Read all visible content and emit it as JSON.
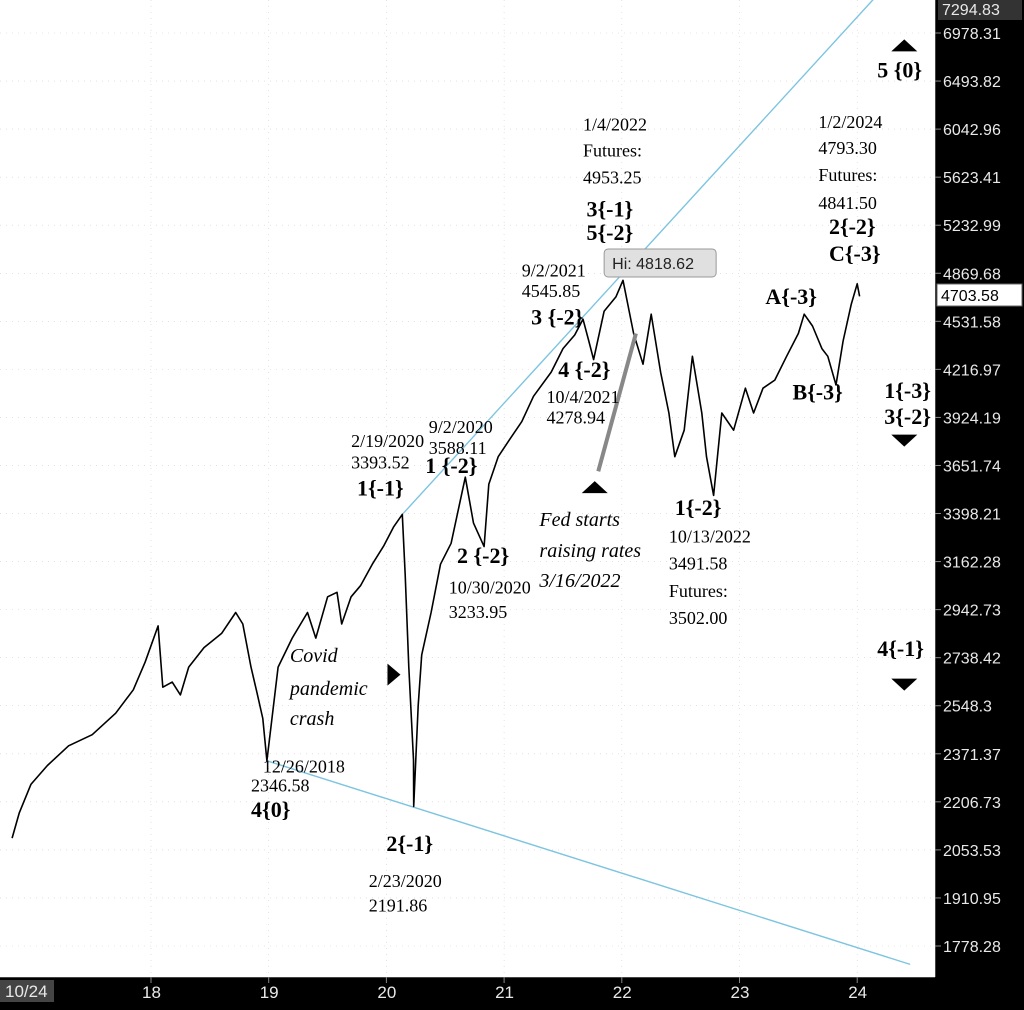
{
  "chart_data": {
    "type": "line",
    "scale": "log",
    "ylim": [
      1700,
      7400
    ],
    "y_ticks": [
      6978.31,
      6493.82,
      6042.96,
      5623.41,
      5232.99,
      4869.68,
      4531.58,
      4216.97,
      3924.19,
      3651.74,
      3398.21,
      3162.28,
      2942.73,
      2738.42,
      2548.3,
      2371.37,
      2206.73,
      2053.53,
      1910.95,
      1778.28
    ],
    "y_top_label": "7294.83",
    "x_ticks": [
      {
        "x": 2018,
        "label": "18"
      },
      {
        "x": 2019,
        "label": "19"
      },
      {
        "x": 2020,
        "label": "20"
      },
      {
        "x": 2021,
        "label": "21"
      },
      {
        "x": 2022,
        "label": "22"
      },
      {
        "x": 2023,
        "label": "23"
      },
      {
        "x": 2024,
        "label": "24"
      }
    ],
    "x_first_label": "10/24",
    "last_price": "4703.58",
    "high_label": "Hi: 4818.62",
    "series": [
      {
        "points": [
          [
            2016.82,
            2090
          ],
          [
            2016.88,
            2170
          ],
          [
            2016.98,
            2265
          ],
          [
            2017.12,
            2330
          ],
          [
            2017.3,
            2400
          ],
          [
            2017.5,
            2440
          ],
          [
            2017.7,
            2520
          ],
          [
            2017.85,
            2610
          ],
          [
            2017.95,
            2720
          ],
          [
            2018.06,
            2872
          ],
          [
            2018.1,
            2620
          ],
          [
            2018.18,
            2640
          ],
          [
            2018.25,
            2590
          ],
          [
            2018.32,
            2700
          ],
          [
            2018.45,
            2780
          ],
          [
            2018.6,
            2840
          ],
          [
            2018.72,
            2930
          ],
          [
            2018.78,
            2880
          ],
          [
            2018.85,
            2700
          ],
          [
            2018.9,
            2600
          ],
          [
            2018.95,
            2500
          ],
          [
            2018.985,
            2346.58
          ],
          [
            2019.08,
            2700
          ],
          [
            2019.2,
            2820
          ],
          [
            2019.33,
            2930
          ],
          [
            2019.4,
            2820
          ],
          [
            2019.5,
            3000
          ],
          [
            2019.58,
            3020
          ],
          [
            2019.62,
            2880
          ],
          [
            2019.7,
            3000
          ],
          [
            2019.78,
            3050
          ],
          [
            2019.88,
            3150
          ],
          [
            2019.98,
            3240
          ],
          [
            2020.06,
            3330
          ],
          [
            2020.135,
            3393.52
          ],
          [
            2020.16,
            3100
          ],
          [
            2020.19,
            2700
          ],
          [
            2020.23,
            2350
          ],
          [
            2020.232,
            2191.86
          ],
          [
            2020.27,
            2550
          ],
          [
            2020.3,
            2750
          ],
          [
            2020.38,
            2930
          ],
          [
            2020.46,
            3150
          ],
          [
            2020.55,
            3250
          ],
          [
            2020.67,
            3588.11
          ],
          [
            2020.74,
            3350
          ],
          [
            2020.83,
            3233.95
          ],
          [
            2020.87,
            3550
          ],
          [
            2020.95,
            3700
          ],
          [
            2021.05,
            3800
          ],
          [
            2021.15,
            3900
          ],
          [
            2021.25,
            4050
          ],
          [
            2021.4,
            4200
          ],
          [
            2021.5,
            4350
          ],
          [
            2021.6,
            4440
          ],
          [
            2021.67,
            4545.85
          ],
          [
            2021.72,
            4400
          ],
          [
            2021.76,
            4278.94
          ],
          [
            2021.85,
            4600
          ],
          [
            2021.95,
            4700
          ],
          [
            2022.01,
            4818.62
          ],
          [
            2022.1,
            4450
          ],
          [
            2022.18,
            4250
          ],
          [
            2022.25,
            4580
          ],
          [
            2022.33,
            4200
          ],
          [
            2022.4,
            3950
          ],
          [
            2022.45,
            3700
          ],
          [
            2022.53,
            3850
          ],
          [
            2022.6,
            4300
          ],
          [
            2022.68,
            3950
          ],
          [
            2022.72,
            3700
          ],
          [
            2022.78,
            3491.58
          ],
          [
            2022.85,
            3950
          ],
          [
            2022.95,
            3850
          ],
          [
            2023.05,
            4100
          ],
          [
            2023.12,
            3950
          ],
          [
            2023.2,
            4100
          ],
          [
            2023.3,
            4150
          ],
          [
            2023.4,
            4300
          ],
          [
            2023.5,
            4450
          ],
          [
            2023.55,
            4580
          ],
          [
            2023.62,
            4500
          ],
          [
            2023.7,
            4350
          ],
          [
            2023.75,
            4300
          ],
          [
            2023.82,
            4120
          ],
          [
            2023.88,
            4400
          ],
          [
            2023.95,
            4650
          ],
          [
            2024.0,
            4793.3
          ],
          [
            2024.02,
            4703.58
          ]
        ]
      }
    ],
    "trendlines": [
      {
        "from": [
          2020.135,
          3393.52
        ],
        "to": [
          2024.25,
          7500
        ]
      },
      {
        "from": [
          2018.985,
          2346.58
        ],
        "to": [
          2024.45,
          1730
        ]
      }
    ],
    "annotations": [
      {
        "text": "12/26/2018",
        "x": 2018.95,
        "y": 2305
      },
      {
        "text": "2346.58",
        "x": 2018.85,
        "y": 2242
      },
      {
        "text": "4{0}",
        "x": 2018.85,
        "y": 2158,
        "bold": true
      },
      {
        "text": "2/19/2020",
        "x": 2019.7,
        "y": 3755
      },
      {
        "text": "3393.52",
        "x": 2019.7,
        "y": 3635
      },
      {
        "text": "1{-1}",
        "x": 2019.75,
        "y": 3490,
        "bold": true
      },
      {
        "text": "2{-1}",
        "x": 2020.0,
        "y": 2050,
        "bold": true
      },
      {
        "text": "2/23/2020",
        "x": 2019.85,
        "y": 1942
      },
      {
        "text": "2191.86",
        "x": 2019.85,
        "y": 1872
      },
      {
        "text": "Covid",
        "x": 2019.18,
        "y": 2720,
        "italic": true
      },
      {
        "text": "pandemic",
        "x": 2019.18,
        "y": 2590,
        "italic": true
      },
      {
        "text": "crash",
        "x": 2019.18,
        "y": 2475,
        "italic": true
      },
      {
        "text": "9/2/2020",
        "x": 2020.36,
        "y": 3835
      },
      {
        "text": "3588.11",
        "x": 2020.36,
        "y": 3715
      },
      {
        "text": "1 {-2}",
        "x": 2020.33,
        "y": 3610,
        "bold": true
      },
      {
        "text": "2 {-2}",
        "x": 2020.6,
        "y": 3155,
        "bold": true
      },
      {
        "text": "10/30/2020",
        "x": 2020.53,
        "y": 3015
      },
      {
        "text": "3233.95",
        "x": 2020.53,
        "y": 2907
      },
      {
        "text": "9/2/2021",
        "x": 2021.15,
        "y": 4845
      },
      {
        "text": "4545.85",
        "x": 2021.15,
        "y": 4700
      },
      {
        "text": "3 {-2}",
        "x": 2021.23,
        "y": 4510,
        "bold": true
      },
      {
        "text": "4 {-2}",
        "x": 2021.46,
        "y": 4170,
        "bold": true
      },
      {
        "text": "10/4/2021",
        "x": 2021.36,
        "y": 4010
      },
      {
        "text": "4278.94",
        "x": 2021.36,
        "y": 3890
      },
      {
        "text": "1/4/2022",
        "x": 2021.67,
        "y": 6030
      },
      {
        "text": "Futures:",
        "x": 2021.67,
        "y": 5800
      },
      {
        "text": "4953.25",
        "x": 2021.67,
        "y": 5570
      },
      {
        "text": "3{-1}",
        "x": 2021.7,
        "y": 5300,
        "bold": true
      },
      {
        "text": "5{-2}",
        "x": 2021.7,
        "y": 5120,
        "bold": true
      },
      {
        "text": "Fed starts",
        "x": 2021.3,
        "y": 3335,
        "italic": true
      },
      {
        "text": "raising rates",
        "x": 2021.3,
        "y": 3185,
        "italic": true
      },
      {
        "text": "3/16/2022",
        "x": 2021.3,
        "y": 3045,
        "italic": true
      },
      {
        "text": "1{-2}",
        "x": 2022.45,
        "y": 3390,
        "bold": true
      },
      {
        "text": "10/13/2022",
        "x": 2022.4,
        "y": 3255
      },
      {
        "text": "3491.58",
        "x": 2022.4,
        "y": 3125
      },
      {
        "text": "Futures:",
        "x": 2022.4,
        "y": 3000
      },
      {
        "text": "3502.00",
        "x": 2022.4,
        "y": 2880
      },
      {
        "text": "A{-3}",
        "x": 2023.22,
        "y": 4650,
        "bold": true
      },
      {
        "text": "B{-3}",
        "x": 2023.45,
        "y": 4030,
        "bold": true
      },
      {
        "text": "1/2/2024",
        "x": 2023.67,
        "y": 6055
      },
      {
        "text": "4793.30",
        "x": 2023.67,
        "y": 5820
      },
      {
        "text": "Futures:",
        "x": 2023.67,
        "y": 5590
      },
      {
        "text": "4841.50",
        "x": 2023.67,
        "y": 5360
      },
      {
        "text": "2{-2}",
        "x": 2023.76,
        "y": 5165,
        "bold": true
      },
      {
        "text": "C{-3}",
        "x": 2023.76,
        "y": 4960,
        "bold": true
      },
      {
        "text": "5 {0}",
        "x": 2024.17,
        "y": 6530,
        "bold": true
      },
      {
        "text": "1{-3}",
        "x": 2024.23,
        "y": 4040,
        "bold": true
      },
      {
        "text": "3{-2}",
        "x": 2024.23,
        "y": 3885,
        "bold": true
      },
      {
        "text": "4{-1}",
        "x": 2024.17,
        "y": 2745,
        "bold": true
      }
    ],
    "markers": [
      {
        "shape": "up",
        "x": 2024.4,
        "y": 6850
      },
      {
        "shape": "down",
        "x": 2024.4,
        "y": 3790
      },
      {
        "shape": "down",
        "x": 2024.4,
        "y": 2630
      },
      {
        "shape": "up",
        "x": 2021.77,
        "y": 3535
      },
      {
        "shape": "right",
        "x": 2020.06,
        "y": 2670
      }
    ],
    "fed_arrow": {
      "from": [
        2021.8,
        3620
      ],
      "to": [
        2022.12,
        4450
      ]
    }
  }
}
